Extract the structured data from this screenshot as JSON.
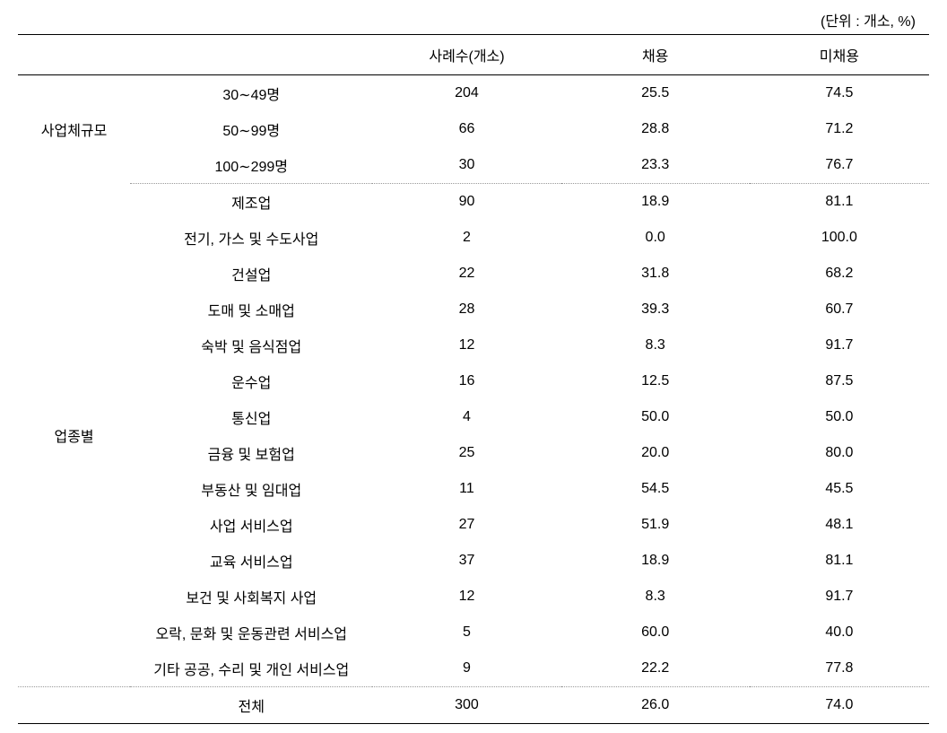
{
  "unit_label": "(단위 : 개소, %)",
  "headers": {
    "col_group": "",
    "col_label": "",
    "col_cases": "사례수(개소)",
    "col_hired": "채용",
    "col_nothired": "미채용"
  },
  "groups": {
    "size": {
      "label": "사업체규모",
      "rows": [
        {
          "label": "30∼49명",
          "cases": "204",
          "hired": "25.5",
          "nothired": "74.5"
        },
        {
          "label": "50∼99명",
          "cases": "66",
          "hired": "28.8",
          "nothired": "71.2"
        },
        {
          "label": "100∼299명",
          "cases": "30",
          "hired": "23.3",
          "nothired": "76.7"
        }
      ]
    },
    "industry": {
      "label": "업종별",
      "rows": [
        {
          "label": "제조업",
          "cases": "90",
          "hired": "18.9",
          "nothired": "81.1"
        },
        {
          "label": "전기, 가스 및 수도사업",
          "cases": "2",
          "hired": "0.0",
          "nothired": "100.0"
        },
        {
          "label": "건설업",
          "cases": "22",
          "hired": "31.8",
          "nothired": "68.2"
        },
        {
          "label": "도매 및 소매업",
          "cases": "28",
          "hired": "39.3",
          "nothired": "60.7"
        },
        {
          "label": "숙박 및 음식점업",
          "cases": "12",
          "hired": "8.3",
          "nothired": "91.7"
        },
        {
          "label": "운수업",
          "cases": "16",
          "hired": "12.5",
          "nothired": "87.5"
        },
        {
          "label": "통신업",
          "cases": "4",
          "hired": "50.0",
          "nothired": "50.0"
        },
        {
          "label": "금융 및 보험업",
          "cases": "25",
          "hired": "20.0",
          "nothired": "80.0"
        },
        {
          "label": "부동산 및 임대업",
          "cases": "11",
          "hired": "54.5",
          "nothired": "45.5"
        },
        {
          "label": "사업 서비스업",
          "cases": "27",
          "hired": "51.9",
          "nothired": "48.1"
        },
        {
          "label": "교육 서비스업",
          "cases": "37",
          "hired": "18.9",
          "nothired": "81.1"
        },
        {
          "label": "보건 및 사회복지 사업",
          "cases": "12",
          "hired": "8.3",
          "nothired": "91.7"
        },
        {
          "label": "오락, 문화 및 운동관련 서비스업",
          "cases": "5",
          "hired": "60.0",
          "nothired": "40.0"
        },
        {
          "label": "기타 공공, 수리 및 개인 서비스업",
          "cases": "9",
          "hired": "22.2",
          "nothired": "77.8"
        }
      ]
    }
  },
  "total": {
    "label": "전체",
    "cases": "300",
    "hired": "26.0",
    "nothired": "74.0"
  },
  "styling": {
    "font_size": 16,
    "border_top_width": 1.5,
    "border_mid_width": 1.0,
    "dotted_color": "#999999",
    "text_color": "#000000",
    "background_color": "#ffffff",
    "col_widths": {
      "group": 125,
      "label": 270,
      "cases": 210,
      "hired": 210,
      "nothired": 200
    }
  }
}
